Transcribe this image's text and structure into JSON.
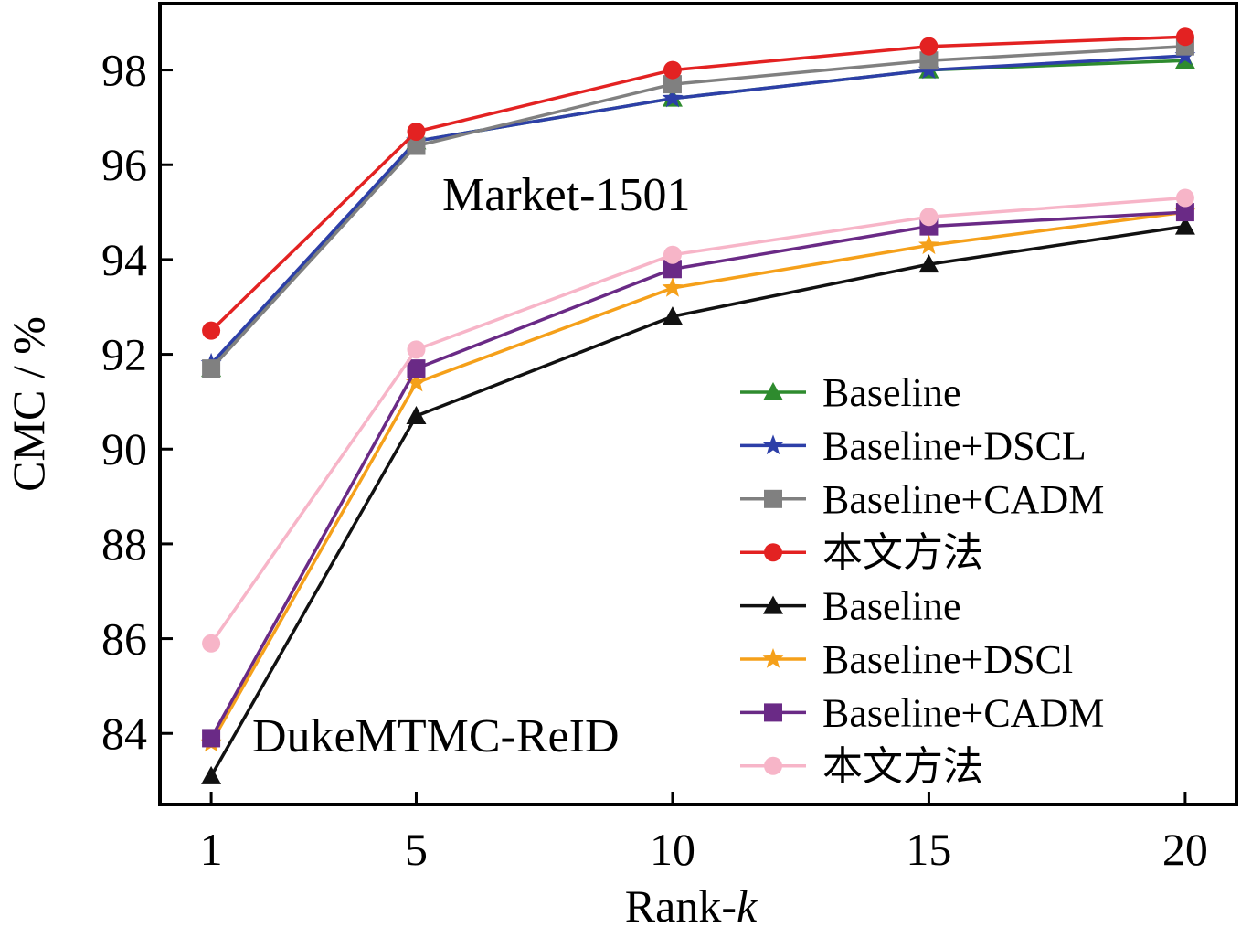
{
  "chart_data": {
    "type": "line",
    "xlabel": "Rank-",
    "xlabel_italic": "k",
    "ylabel": "CMC / %",
    "x": [
      1,
      5,
      10,
      15,
      20
    ],
    "xlim": [
      0,
      21
    ],
    "ylim": [
      82.5,
      99.4
    ],
    "xticks": [
      "1",
      "5",
      "10",
      "15",
      "20"
    ],
    "yticks": [
      "84",
      "86",
      "88",
      "90",
      "92",
      "94",
      "96",
      "98"
    ],
    "grid": false,
    "legend_position": "bottom-right",
    "annotations": [
      {
        "text": "Market-1501"
      },
      {
        "text": "DukeMTMC-ReID"
      }
    ],
    "series": [
      {
        "name": "Baseline",
        "marker": "triangle",
        "color": "#2e8b2e",
        "values": [
          91.7,
          96.5,
          97.4,
          98.0,
          98.2
        ]
      },
      {
        "name": "Baseline+DSCL",
        "marker": "star",
        "color": "#2d3fa8",
        "values": [
          91.8,
          96.5,
          97.4,
          98.0,
          98.3
        ]
      },
      {
        "name": "Baseline+CADM",
        "marker": "square",
        "color": "#808080",
        "values": [
          91.7,
          96.4,
          97.7,
          98.2,
          98.5
        ]
      },
      {
        "name": "本文方法",
        "marker": "circle",
        "color": "#e32222",
        "values": [
          92.5,
          96.7,
          98.0,
          98.5,
          98.7
        ]
      },
      {
        "name": "Baseline",
        "marker": "triangle",
        "color": "#111111",
        "values": [
          83.1,
          90.7,
          92.8,
          93.9,
          94.7
        ]
      },
      {
        "name": "Baseline+DSCl",
        "marker": "star",
        "color": "#f5a01a",
        "values": [
          83.8,
          91.4,
          93.4,
          94.3,
          95.0
        ]
      },
      {
        "name": "Baseline+CADM",
        "marker": "square",
        "color": "#6a2a86",
        "values": [
          83.9,
          91.7,
          93.8,
          94.7,
          95.0
        ]
      },
      {
        "name": "本文方法",
        "marker": "circle",
        "color": "#f7b5c8",
        "values": [
          85.9,
          92.1,
          94.1,
          94.9,
          95.3
        ]
      }
    ]
  }
}
